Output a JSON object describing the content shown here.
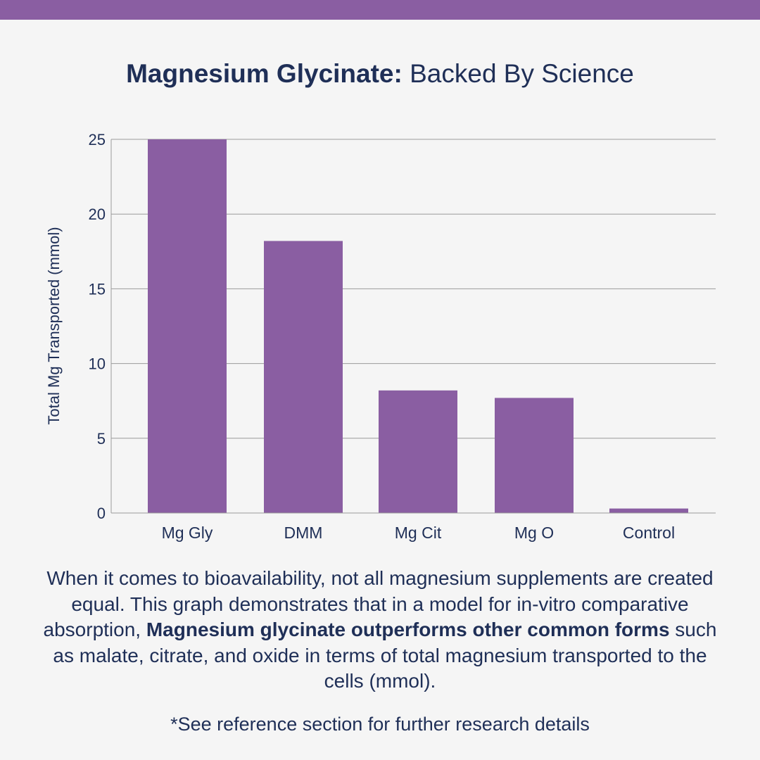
{
  "colors": {
    "accent": "#8a5ea2",
    "text": "#1f2f57",
    "background": "#f5f5f5",
    "gridline": "#9a9a9a"
  },
  "header": {
    "title_bold": "Magnesium Glycinate:",
    "title_normal": " Backed By Science"
  },
  "description": {
    "part1": "When it comes to bioavailability, not all magnesium supplements are created equal. This graph demonstrates that in a model for in-vitro comparative absorption, ",
    "bold": "Magnesium glycinate outperforms other common forms",
    "part2": " such as malate, citrate, and oxide in terms of total magnesium transported to the cells (mmol)."
  },
  "footnote": "*See reference section for further research details",
  "chart_data": {
    "type": "bar",
    "title": "Magnesium Glycinate: Backed By Science",
    "xlabel": "",
    "ylabel": "Total Mg Transported (mmol)",
    "categories": [
      "Mg Gly",
      "DMM",
      "Mg Cit",
      "Mg O",
      "Control"
    ],
    "values": [
      25,
      18.2,
      8.2,
      7.7,
      0.3
    ],
    "ylim": [
      0,
      25
    ],
    "yticks": [
      0,
      5,
      10,
      15,
      20,
      25
    ],
    "grid": true,
    "bar_color": "#8a5ea2"
  }
}
